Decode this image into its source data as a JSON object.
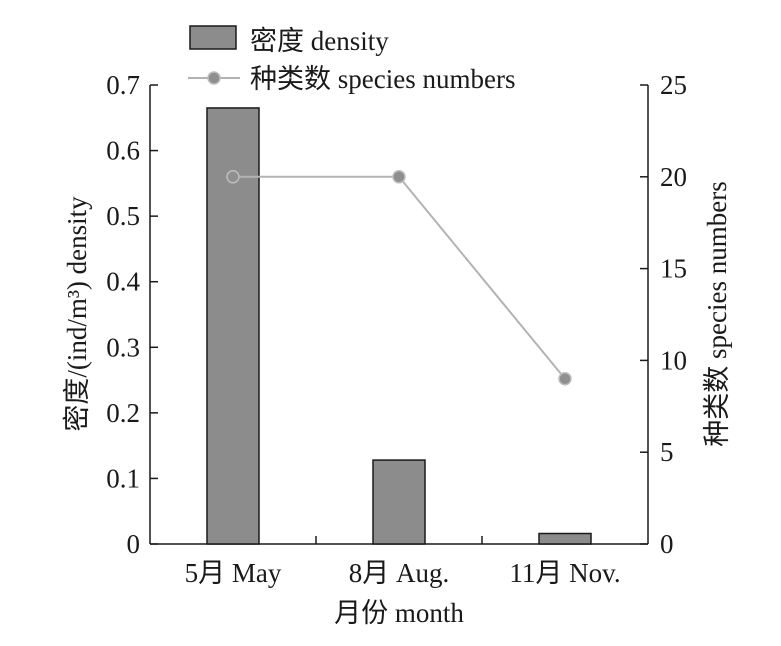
{
  "chart_data": {
    "type": "bar",
    "categories": [
      "5月 May",
      "8月 Aug.",
      "11月 Nov."
    ],
    "series": [
      {
        "name": "密度 density",
        "kind": "bar",
        "axis": "left",
        "values": [
          0.665,
          0.128,
          0.016
        ]
      },
      {
        "name": "种类数 species numbers",
        "kind": "line",
        "axis": "right",
        "values": [
          20,
          20,
          9
        ]
      }
    ],
    "xlabel": "月份 month",
    "ylabel": "密度/(ind/m³) density",
    "y2label": "种类数 species numbers",
    "ylim": [
      0,
      0.7
    ],
    "y2lim": [
      0,
      25
    ],
    "yticks": [
      "0",
      "0.1",
      "0.2",
      "0.3",
      "0.4",
      "0.5",
      "0.6",
      "0.7"
    ],
    "y2ticks": [
      "0",
      "5",
      "10",
      "15",
      "20",
      "25"
    ],
    "legend_position": "top-center",
    "grid": false,
    "colors": {
      "bar_fill": "#8c8c8c",
      "bar_stroke": "#1a1a1a",
      "line": "#b3b3b3",
      "marker": "#8f8f8f",
      "axis": "#1a1a1a"
    }
  }
}
